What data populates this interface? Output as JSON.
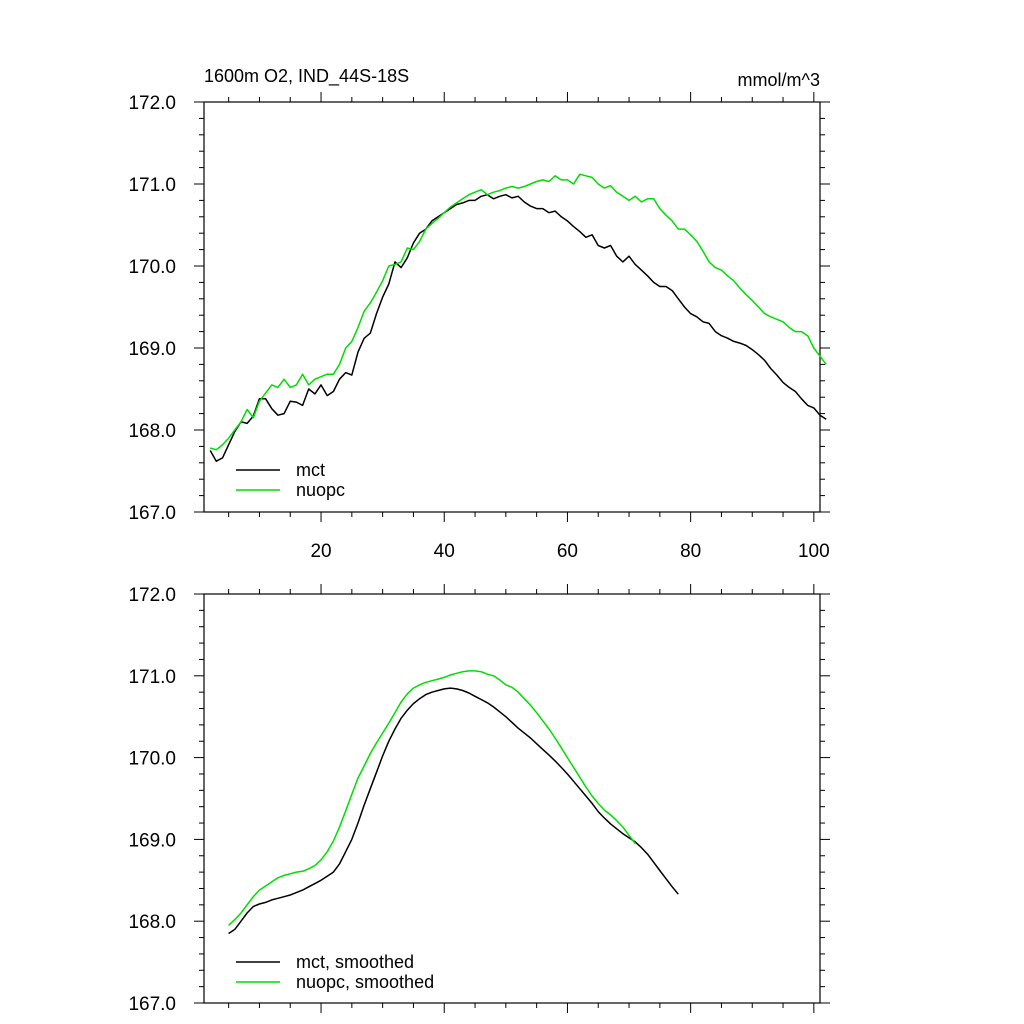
{
  "header": {
    "left_title": "1600m O2, IND_44S-18S",
    "right_title": "mmol/m^3"
  },
  "colors": {
    "mct": "#000000",
    "nuopc": "#00dd00"
  },
  "chart_data": [
    {
      "type": "line",
      "id": "top",
      "xlim": [
        1,
        101
      ],
      "ylim": [
        167.0,
        172.0
      ],
      "x_ticks": [
        20,
        40,
        60,
        80,
        100
      ],
      "x_tick_labels": [
        "20",
        "40",
        "60",
        "80",
        "100"
      ],
      "y_ticks": [
        167.0,
        168.0,
        169.0,
        170.0,
        171.0,
        172.0
      ],
      "y_tick_labels": [
        "167.0",
        "168.0",
        "169.0",
        "170.0",
        "171.0",
        "172.0"
      ],
      "x_start": 2,
      "legend": [
        "mct",
        "nuopc"
      ],
      "series": [
        {
          "name": "mct",
          "color": "#000000",
          "values": [
            167.75,
            167.62,
            167.66,
            167.82,
            167.98,
            168.1,
            168.08,
            168.17,
            168.38,
            168.38,
            168.26,
            168.18,
            168.2,
            168.35,
            168.34,
            168.3,
            168.5,
            168.44,
            168.55,
            168.42,
            168.47,
            168.62,
            168.7,
            168.67,
            168.95,
            169.12,
            169.18,
            169.42,
            169.62,
            169.78,
            170.05,
            169.98,
            170.1,
            170.28,
            170.4,
            170.45,
            170.55,
            170.6,
            170.65,
            170.7,
            170.75,
            170.77,
            170.8,
            170.8,
            170.85,
            170.87,
            170.82,
            170.85,
            170.87,
            170.83,
            170.85,
            170.78,
            170.73,
            170.7,
            170.7,
            170.65,
            170.67,
            170.6,
            170.55,
            170.48,
            170.42,
            170.35,
            170.38,
            170.25,
            170.22,
            170.25,
            170.12,
            170.05,
            170.12,
            170.02,
            169.95,
            169.88,
            169.8,
            169.75,
            169.75,
            169.7,
            169.6,
            169.5,
            169.42,
            169.38,
            169.32,
            169.3,
            169.2,
            169.15,
            169.12,
            169.08,
            169.06,
            169.03,
            168.98,
            168.92,
            168.85,
            168.75,
            168.67,
            168.58,
            168.52,
            168.47,
            168.38,
            168.3,
            168.27,
            168.18,
            168.13
          ]
        },
        {
          "name": "nuopc",
          "color": "#00dd00",
          "values": [
            167.78,
            167.76,
            167.82,
            167.9,
            168.0,
            168.1,
            168.25,
            168.15,
            168.35,
            168.45,
            168.55,
            168.52,
            168.62,
            168.52,
            168.55,
            168.68,
            168.55,
            168.62,
            168.65,
            168.68,
            168.68,
            168.8,
            169.0,
            169.08,
            169.25,
            169.45,
            169.55,
            169.68,
            169.82,
            170.0,
            170.02,
            170.05,
            170.22,
            170.2,
            170.3,
            170.45,
            170.52,
            170.58,
            170.65,
            170.72,
            170.77,
            170.82,
            170.87,
            170.9,
            170.93,
            170.87,
            170.9,
            170.92,
            170.95,
            170.97,
            170.95,
            170.97,
            171.0,
            171.03,
            171.05,
            171.03,
            171.1,
            171.05,
            171.05,
            171.0,
            171.12,
            171.1,
            171.08,
            171.0,
            170.95,
            170.98,
            170.9,
            170.85,
            170.8,
            170.85,
            170.78,
            170.82,
            170.82,
            170.7,
            170.62,
            170.55,
            170.45,
            170.45,
            170.38,
            170.3,
            170.18,
            170.05,
            169.98,
            169.95,
            169.88,
            169.82,
            169.73,
            169.65,
            169.58,
            169.5,
            169.42,
            169.38,
            169.35,
            169.32,
            169.25,
            169.2,
            169.2,
            169.15,
            169.0,
            168.9,
            168.8
          ]
        }
      ]
    },
    {
      "type": "line",
      "id": "bottom",
      "xlim": [
        1,
        101
      ],
      "ylim": [
        167.0,
        172.0
      ],
      "x_ticks": [
        20,
        40,
        60,
        80,
        100
      ],
      "x_tick_labels": [],
      "y_ticks": [
        167.0,
        168.0,
        169.0,
        170.0,
        171.0,
        172.0
      ],
      "y_tick_labels": [
        "167.0",
        "168.0",
        "169.0",
        "170.0",
        "171.0",
        "172.0"
      ],
      "x_start": 5,
      "legend": [
        "mct, smoothed",
        "nuopc, smoothed"
      ],
      "series": [
        {
          "name": "mct, smoothed",
          "color": "#000000",
          "values": [
            167.85,
            167.9,
            168.0,
            168.1,
            168.18,
            168.21,
            168.23,
            168.26,
            168.28,
            168.3,
            168.32,
            168.35,
            168.38,
            168.42,
            168.46,
            168.5,
            168.55,
            168.6,
            168.7,
            168.85,
            169.0,
            169.2,
            169.42,
            169.62,
            169.82,
            170.02,
            170.2,
            170.35,
            170.48,
            170.58,
            170.66,
            170.72,
            170.77,
            170.8,
            170.82,
            170.84,
            170.85,
            170.84,
            170.82,
            170.79,
            170.75,
            170.71,
            170.67,
            170.62,
            170.56,
            170.5,
            170.43,
            170.36,
            170.3,
            170.24,
            170.17,
            170.1,
            170.03,
            169.96,
            169.88,
            169.8,
            169.71,
            169.62,
            169.53,
            169.44,
            169.34,
            169.26,
            169.19,
            169.13,
            169.07,
            169.02,
            168.97,
            168.9,
            168.82,
            168.72,
            168.62,
            168.52,
            168.42,
            168.33
          ]
        },
        {
          "name": "nuopc, smoothed",
          "color": "#00dd00",
          "values": [
            167.95,
            168.02,
            168.1,
            168.2,
            168.3,
            168.38,
            168.43,
            168.48,
            168.53,
            168.56,
            168.58,
            168.6,
            168.61,
            168.64,
            168.68,
            168.75,
            168.85,
            168.98,
            169.15,
            169.35,
            169.55,
            169.75,
            169.9,
            170.05,
            170.18,
            170.3,
            170.42,
            170.55,
            170.68,
            170.78,
            170.85,
            170.89,
            170.92,
            170.94,
            170.96,
            170.98,
            171.01,
            171.03,
            171.05,
            171.06,
            171.06,
            171.05,
            171.02,
            171.0,
            170.95,
            170.89,
            170.86,
            170.8,
            170.72,
            170.64,
            170.55,
            170.45,
            170.35,
            170.24,
            170.12,
            170.0,
            169.88,
            169.76,
            169.64,
            169.53,
            169.44,
            169.36,
            169.3,
            169.23,
            169.15,
            169.05,
            168.95
          ]
        }
      ]
    }
  ]
}
